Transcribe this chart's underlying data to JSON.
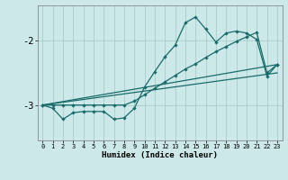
{
  "xlabel": "Humidex (Indice chaleur)",
  "bg_color": "#cce8e8",
  "grid_color": "#aacccc",
  "line_color": "#1a6b6b",
  "x_ticks": [
    0,
    1,
    2,
    3,
    4,
    5,
    6,
    7,
    8,
    9,
    10,
    11,
    12,
    13,
    14,
    15,
    16,
    17,
    18,
    19,
    20,
    21,
    22,
    23
  ],
  "y_ticks": [
    -2,
    -3
  ],
  "ylim": [
    -3.55,
    -1.45
  ],
  "xlim": [
    -0.5,
    23.5
  ],
  "series1_x": [
    0,
    1,
    2,
    3,
    4,
    5,
    6,
    7,
    8,
    9,
    10,
    11,
    12,
    13,
    14,
    15,
    16,
    17,
    18,
    19,
    20,
    21,
    22,
    23
  ],
  "series1_y": [
    -3.0,
    -3.05,
    -3.22,
    -3.12,
    -3.1,
    -3.1,
    -3.1,
    -3.22,
    -3.2,
    -3.05,
    -2.72,
    -2.48,
    -2.25,
    -2.07,
    -1.72,
    -1.63,
    -1.82,
    -2.02,
    -1.88,
    -1.85,
    -1.88,
    -1.98,
    -2.55,
    -2.37
  ],
  "series2_x": [
    0,
    1,
    2,
    3,
    4,
    5,
    6,
    7,
    8,
    9,
    10,
    11,
    12,
    13,
    14,
    15,
    16,
    17,
    18,
    19,
    20,
    21,
    22,
    23
  ],
  "series2_y": [
    -3.0,
    -3.0,
    -3.0,
    -3.0,
    -3.0,
    -3.0,
    -3.0,
    -3.0,
    -3.0,
    -2.94,
    -2.84,
    -2.74,
    -2.64,
    -2.54,
    -2.44,
    -2.36,
    -2.26,
    -2.17,
    -2.09,
    -2.01,
    -1.94,
    -1.87,
    -2.5,
    -2.37
  ],
  "series3_x": [
    0,
    23
  ],
  "series3_y": [
    -3.0,
    -2.37
  ],
  "series4_x": [
    0,
    23
  ],
  "series4_y": [
    -3.0,
    -2.5
  ]
}
